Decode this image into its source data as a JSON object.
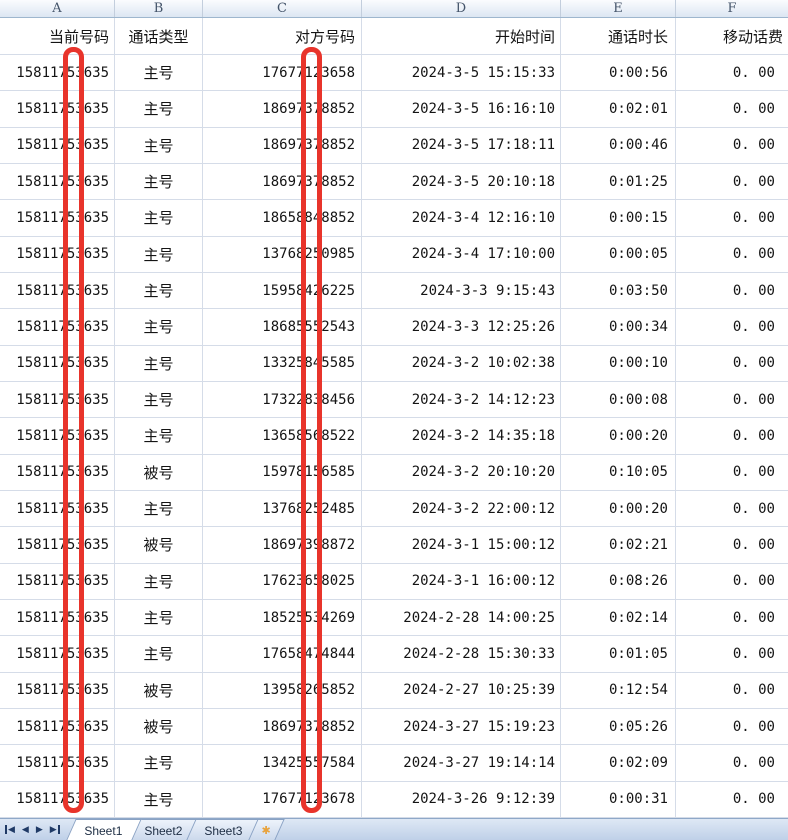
{
  "colors": {
    "redaction_red": "#e8342b"
  },
  "column_strip": {
    "letters": [
      "A",
      "B",
      "C",
      "D",
      "E",
      "F"
    ]
  },
  "table": {
    "headers": [
      "当前号码",
      "通话类型",
      "对方号码",
      "开始时间",
      "通话时长",
      "移动话费"
    ],
    "rows": [
      [
        "15811753635",
        "主号",
        "17677123658",
        "2024-3-5 15:15:33",
        "0:00:56",
        "0. 00"
      ],
      [
        "15811753635",
        "主号",
        "18697378852",
        "2024-3-5 16:16:10",
        "0:02:01",
        "0. 00"
      ],
      [
        "15811753635",
        "主号",
        "18697378852",
        "2024-3-5 17:18:11",
        "0:00:46",
        "0. 00"
      ],
      [
        "15811753635",
        "主号",
        "18697378852",
        "2024-3-5 20:10:18",
        "0:01:25",
        "0. 00"
      ],
      [
        "15811753635",
        "主号",
        "18658848852",
        "2024-3-4 12:16:10",
        "0:00:15",
        "0. 00"
      ],
      [
        "15811753635",
        "主号",
        "13768250985",
        "2024-3-4 17:10:00",
        "0:00:05",
        "0. 00"
      ],
      [
        "15811753635",
        "主号",
        "15958426225",
        "2024-3-3 9:15:43",
        "0:03:50",
        "0. 00"
      ],
      [
        "15811753635",
        "主号",
        "18685552543",
        "2024-3-3 12:25:26",
        "0:00:34",
        "0. 00"
      ],
      [
        "15811753635",
        "主号",
        "13325845585",
        "2024-3-2 10:02:38",
        "0:00:10",
        "0. 00"
      ],
      [
        "15811753635",
        "主号",
        "17322838456",
        "2024-3-2 14:12:23",
        "0:00:08",
        "0. 00"
      ],
      [
        "15811753635",
        "主号",
        "13658568522",
        "2024-3-2 14:35:18",
        "0:00:20",
        "0. 00"
      ],
      [
        "15811753635",
        "被号",
        "15978156585",
        "2024-3-2 20:10:20",
        "0:10:05",
        "0. 00"
      ],
      [
        "15811753635",
        "主号",
        "13768252485",
        "2024-3-2 22:00:12",
        "0:00:20",
        "0. 00"
      ],
      [
        "15811753635",
        "被号",
        "18697398872",
        "2024-3-1 15:00:12",
        "0:02:21",
        "0. 00"
      ],
      [
        "15811753635",
        "主号",
        "17623658025",
        "2024-3-1 16:00:12",
        "0:08:26",
        "0. 00"
      ],
      [
        "15811753635",
        "主号",
        "18525534269",
        "2024-2-28 14:00:25",
        "0:02:14",
        "0. 00"
      ],
      [
        "15811753635",
        "主号",
        "17658474844",
        "2024-2-28 15:30:33",
        "0:01:05",
        "0. 00"
      ],
      [
        "15811753635",
        "被号",
        "13958265852",
        "2024-2-27 10:25:39",
        "0:12:54",
        "0. 00"
      ],
      [
        "15811753635",
        "被号",
        "18697378852",
        "2024-3-27 15:19:23",
        "0:05:26",
        "0. 00"
      ],
      [
        "15811753635",
        "主号",
        "13425557584",
        "2024-3-27 19:14:14",
        "0:02:09",
        "0. 00"
      ],
      [
        "15811753635",
        "主号",
        "17677123678",
        "2024-3-26 9:12:39",
        "0:00:31",
        "0. 00"
      ]
    ]
  },
  "annotations": {
    "bars": [
      {
        "over_column": "A",
        "covers": "one digit of current number"
      },
      {
        "over_column": "C",
        "covers": "one digit of peer number"
      }
    ]
  },
  "sheet_tabs": {
    "tabs": [
      "Sheet1",
      "Sheet2",
      "Sheet3"
    ],
    "active": "Sheet1"
  }
}
